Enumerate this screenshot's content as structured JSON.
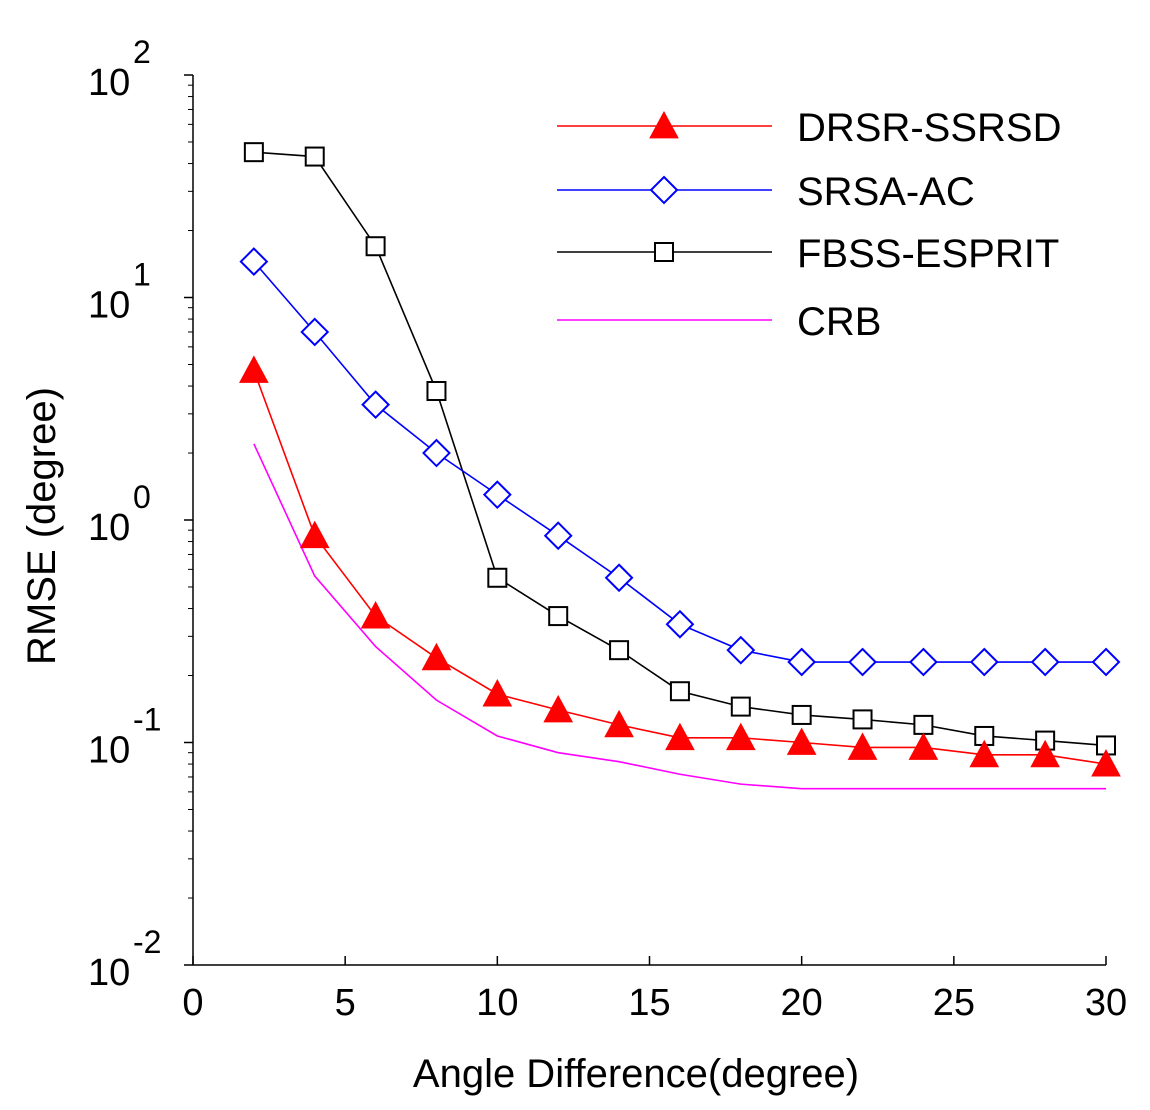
{
  "chart_data": {
    "type": "line",
    "title": "",
    "xlabel": "Angle Difference(degree)",
    "ylabel": "RMSE (degree)",
    "xlim": [
      0,
      30
    ],
    "ylim": [
      0.01,
      100
    ],
    "yscale": "log",
    "grid": false,
    "legend_position": "top-right",
    "x_ticks": [
      0,
      5,
      10,
      15,
      20,
      25,
      30
    ],
    "y_ticks": [
      {
        "value": 100,
        "base": "10",
        "exp": "2"
      },
      {
        "value": 10,
        "base": "10",
        "exp": "1"
      },
      {
        "value": 1,
        "base": "10",
        "exp": "0"
      },
      {
        "value": 0.1,
        "base": "10",
        "exp": "-1"
      },
      {
        "value": 0.01,
        "base": "10",
        "exp": "-2"
      }
    ],
    "series": [
      {
        "name": "DRSR-SSRSD",
        "color": "#ff0000",
        "marker": "filled-triangle",
        "x": [
          2,
          4,
          6,
          8,
          10,
          12,
          14,
          16,
          18,
          20,
          22,
          24,
          26,
          28,
          30
        ],
        "y": [
          4.7,
          0.85,
          0.37,
          0.24,
          0.165,
          0.14,
          0.12,
          0.105,
          0.105,
          0.1,
          0.095,
          0.095,
          0.088,
          0.088,
          0.08
        ]
      },
      {
        "name": "SRSA-AC",
        "color": "#0000ff",
        "marker": "open-diamond",
        "x": [
          2,
          4,
          6,
          8,
          10,
          12,
          14,
          16,
          18,
          20,
          22,
          24,
          26,
          28,
          30
        ],
        "y": [
          14.5,
          7.0,
          3.3,
          2.0,
          1.3,
          0.85,
          0.55,
          0.34,
          0.26,
          0.23,
          0.23,
          0.23,
          0.23,
          0.23,
          0.23
        ]
      },
      {
        "name": "FBSS-ESPRIT",
        "color": "#000000",
        "marker": "open-square",
        "x": [
          2,
          4,
          6,
          8,
          10,
          12,
          14,
          16,
          18,
          20,
          22,
          24,
          26,
          28,
          30
        ],
        "y": [
          45,
          43,
          17,
          3.8,
          0.55,
          0.37,
          0.26,
          0.17,
          0.145,
          0.133,
          0.127,
          0.12,
          0.107,
          0.102,
          0.097
        ]
      },
      {
        "name": "CRB",
        "color": "#ff00ff",
        "marker": "none",
        "x": [
          2,
          4,
          6,
          8,
          10,
          12,
          14,
          16,
          18,
          20,
          22,
          24,
          26,
          28,
          30
        ],
        "y": [
          2.2,
          0.56,
          0.27,
          0.155,
          0.107,
          0.09,
          0.082,
          0.072,
          0.065,
          0.062,
          0.062,
          0.062,
          0.062,
          0.062,
          0.062
        ]
      }
    ]
  }
}
